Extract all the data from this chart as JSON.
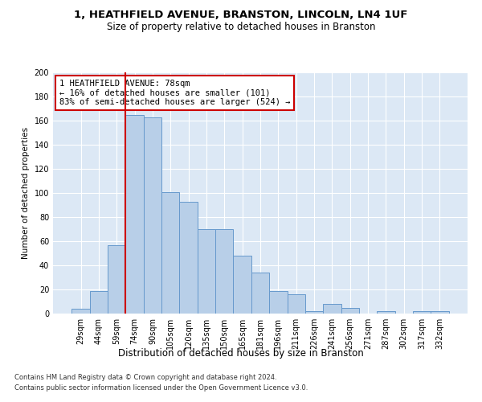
{
  "title1": "1, HEATHFIELD AVENUE, BRANSTON, LINCOLN, LN4 1UF",
  "title2": "Size of property relative to detached houses in Branston",
  "xlabel": "Distribution of detached houses by size in Branston",
  "ylabel": "Number of detached properties",
  "footnote1": "Contains HM Land Registry data © Crown copyright and database right 2024.",
  "footnote2": "Contains public sector information licensed under the Open Government Licence v3.0.",
  "annotation_line1": "1 HEATHFIELD AVENUE: 78sqm",
  "annotation_line2": "← 16% of detached houses are smaller (101)",
  "annotation_line3": "83% of semi-detached houses are larger (524) →",
  "bar_labels": [
    "29sqm",
    "44sqm",
    "59sqm",
    "74sqm",
    "90sqm",
    "105sqm",
    "120sqm",
    "135sqm",
    "150sqm",
    "165sqm",
    "181sqm",
    "196sqm",
    "211sqm",
    "226sqm",
    "241sqm",
    "256sqm",
    "271sqm",
    "287sqm",
    "302sqm",
    "317sqm",
    "332sqm"
  ],
  "bar_values": [
    4,
    19,
    57,
    165,
    163,
    101,
    93,
    70,
    70,
    48,
    34,
    19,
    16,
    2,
    8,
    5,
    0,
    2,
    0,
    2,
    2
  ],
  "bar_color": "#b8cfe8",
  "bar_edgecolor": "#6699cc",
  "vline_color": "#cc0000",
  "vline_x_index": 3,
  "plot_background": "#dce8f5",
  "ylim": [
    0,
    200
  ],
  "yticks": [
    0,
    20,
    40,
    60,
    80,
    100,
    120,
    140,
    160,
    180,
    200
  ],
  "title1_fontsize": 9.5,
  "title2_fontsize": 8.5,
  "xlabel_fontsize": 8.5,
  "ylabel_fontsize": 7.5,
  "tick_fontsize": 7,
  "footnote_fontsize": 6,
  "annotation_fontsize": 7.5
}
